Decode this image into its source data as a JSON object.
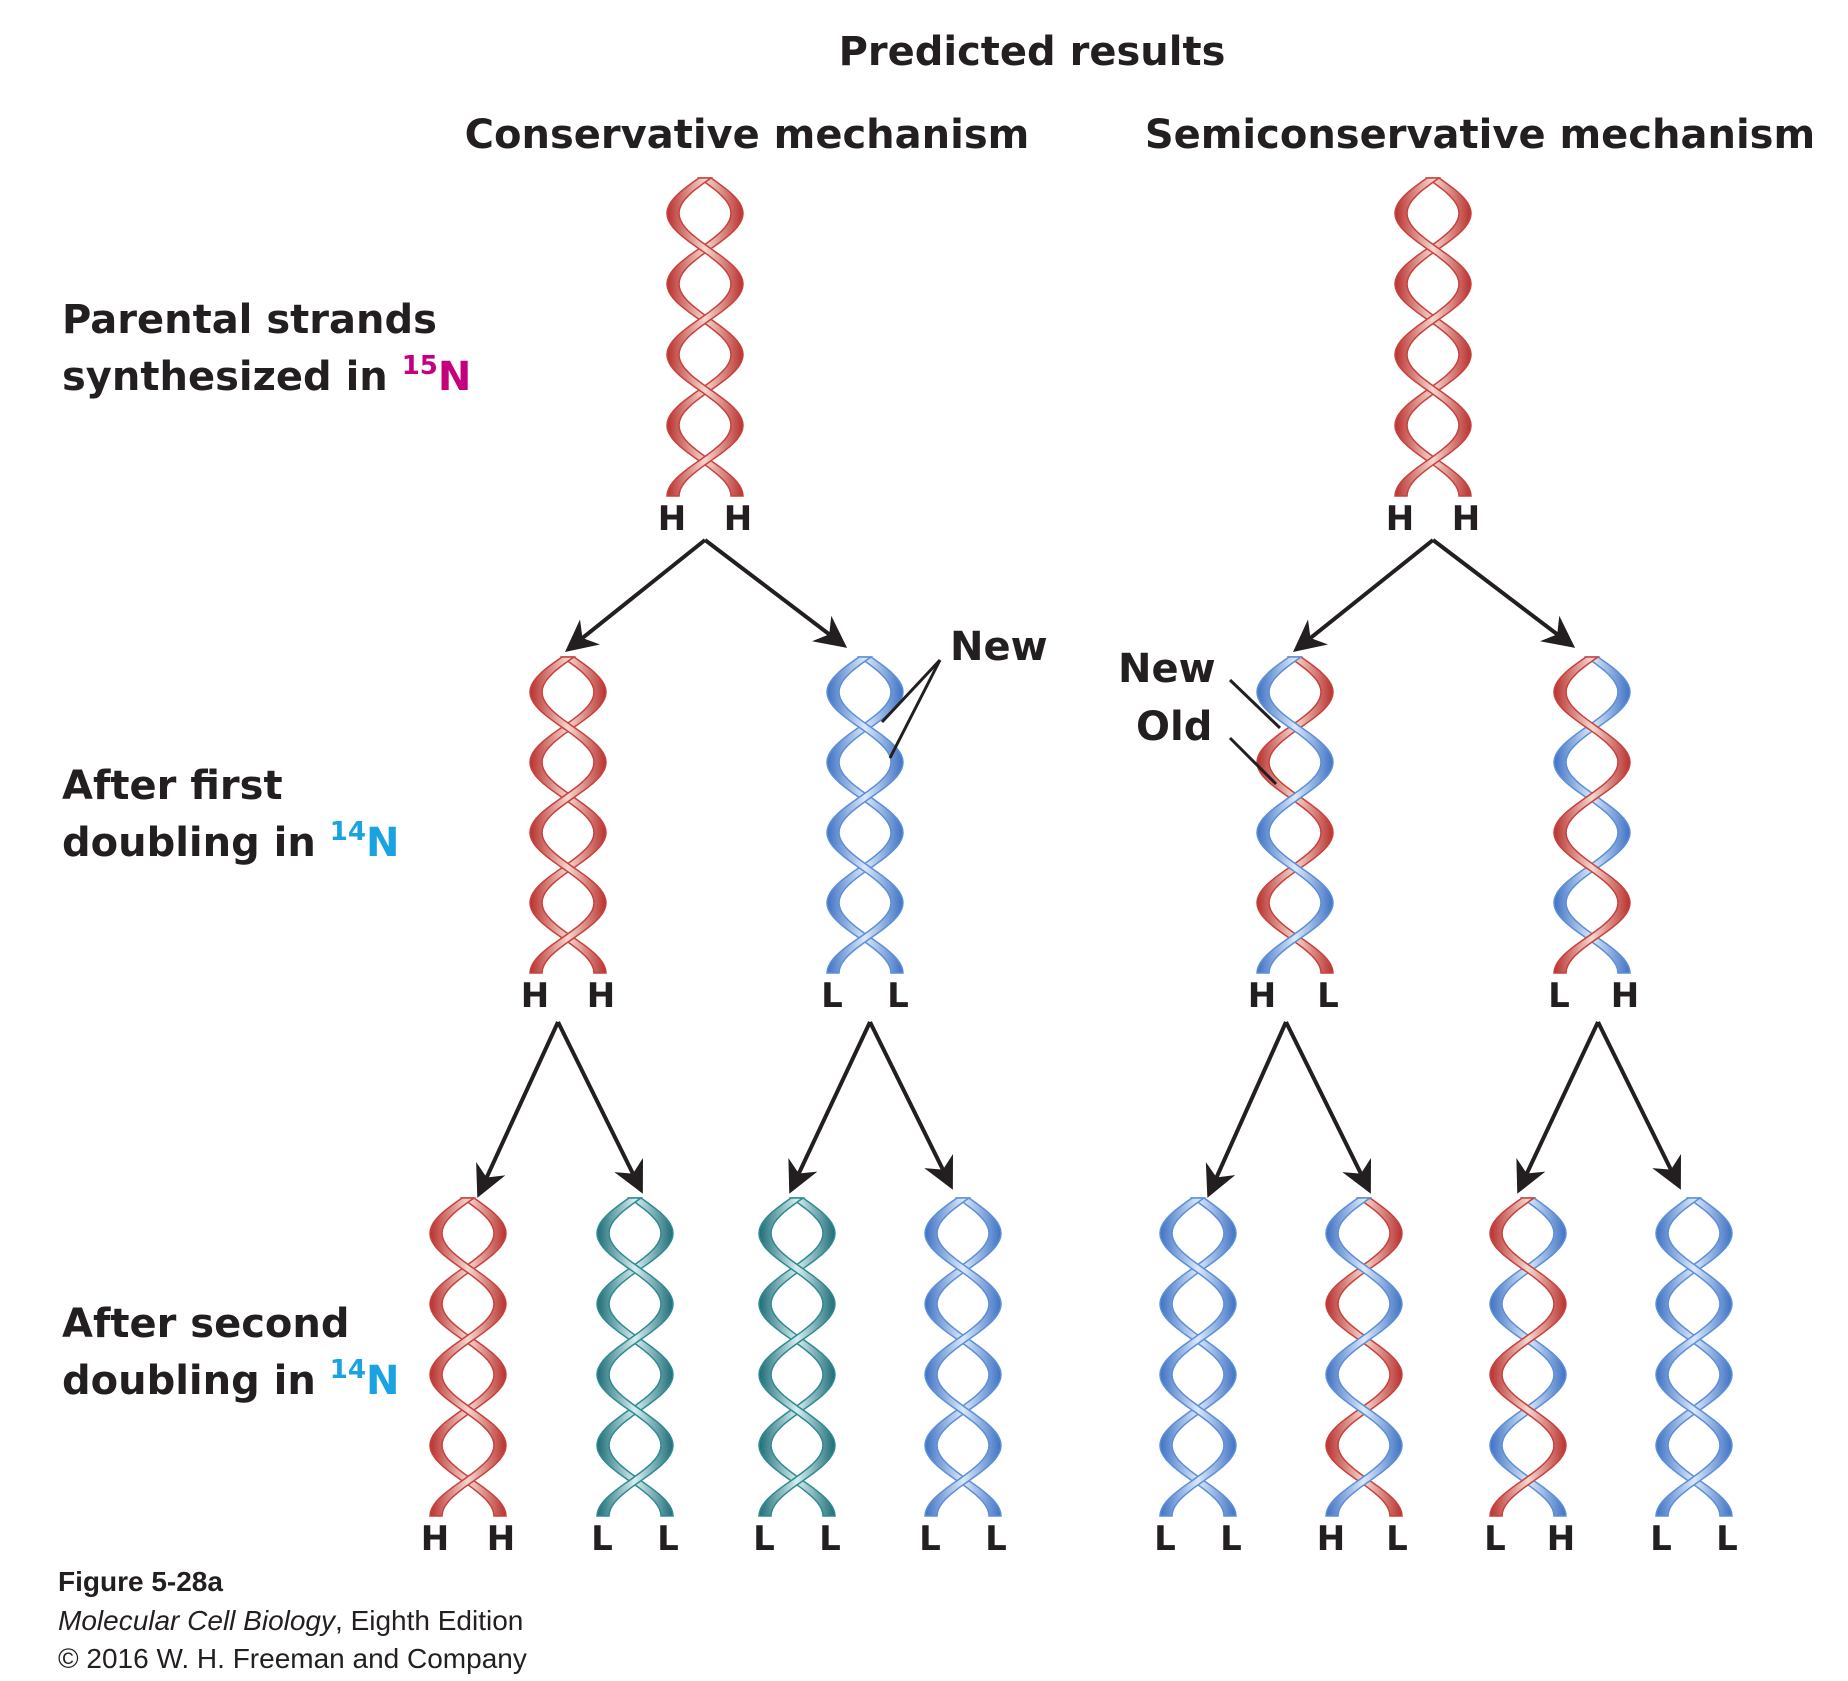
{
  "title": "Predicted results",
  "columns": {
    "conservative": "Conservative mechanism",
    "semiconservative": "Semiconservative mechanism"
  },
  "rows": {
    "parental": {
      "line1": "Parental strands",
      "line2": "synthesized in ",
      "isotope_mass": "15",
      "isotope_symbol": "N"
    },
    "first": {
      "line1": "After first",
      "line2": "doubling in ",
      "isotope_mass": "14",
      "isotope_symbol": "N"
    },
    "second": {
      "line1": "After second",
      "line2": "doubling in ",
      "isotope_mass": "14",
      "isotope_symbol": "N"
    }
  },
  "annotations": {
    "new_conservative": "New",
    "new_semi": "New",
    "old_semi": "Old"
  },
  "colors": {
    "heavy_strand": "#c8413c",
    "light_strand": "#5b8fd6",
    "hybrid_teal": "#2f8a92",
    "isotope_15N": "#c4007f",
    "isotope_14N": "#1aa3e0",
    "text": "#231f20"
  },
  "helices": [
    {
      "id": "cons-parent",
      "labels": [
        "H",
        "H"
      ],
      "strands": [
        "heavy",
        "heavy"
      ]
    },
    {
      "id": "semi-parent",
      "labels": [
        "H",
        "H"
      ],
      "strands": [
        "heavy",
        "heavy"
      ]
    },
    {
      "id": "cons-g1-a",
      "labels": [
        "H",
        "H"
      ],
      "strands": [
        "heavy",
        "heavy"
      ]
    },
    {
      "id": "cons-g1-b",
      "labels": [
        "L",
        "L"
      ],
      "strands": [
        "light",
        "light"
      ]
    },
    {
      "id": "semi-g1-a",
      "labels": [
        "H",
        "L"
      ],
      "strands": [
        "heavy",
        "light"
      ]
    },
    {
      "id": "semi-g1-b",
      "labels": [
        "L",
        "H"
      ],
      "strands": [
        "light",
        "heavy"
      ]
    },
    {
      "id": "cons-g2-a",
      "labels": [
        "H",
        "H"
      ],
      "strands": [
        "heavy",
        "heavy"
      ]
    },
    {
      "id": "cons-g2-b",
      "labels": [
        "L",
        "L"
      ],
      "strands": [
        "teal",
        "teal"
      ]
    },
    {
      "id": "cons-g2-c",
      "labels": [
        "L",
        "L"
      ],
      "strands": [
        "teal",
        "teal"
      ]
    },
    {
      "id": "cons-g2-d",
      "labels": [
        "L",
        "L"
      ],
      "strands": [
        "light",
        "light"
      ]
    },
    {
      "id": "semi-g2-a",
      "labels": [
        "L",
        "L"
      ],
      "strands": [
        "light",
        "light"
      ]
    },
    {
      "id": "semi-g2-b",
      "labels": [
        "H",
        "L"
      ],
      "strands": [
        "heavy",
        "light"
      ]
    },
    {
      "id": "semi-g2-c",
      "labels": [
        "L",
        "H"
      ],
      "strands": [
        "light",
        "heavy"
      ]
    },
    {
      "id": "semi-g2-d",
      "labels": [
        "L",
        "L"
      ],
      "strands": [
        "light",
        "light"
      ]
    }
  ],
  "caption": {
    "figure": "Figure 5-28a",
    "book_title": "Molecular Cell Biology",
    "book_edition": ", Eighth Edition",
    "copyright": "© 2016 W. H. Freeman and Company"
  }
}
